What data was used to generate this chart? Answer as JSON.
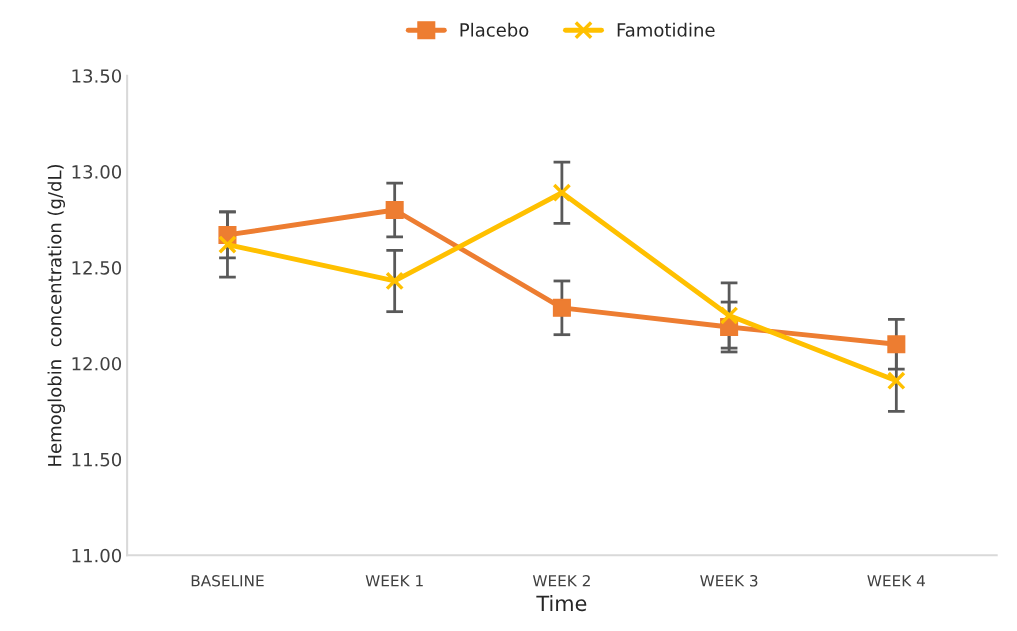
{
  "chart_data": {
    "type": "line",
    "xlabel": "Time",
    "ylabel": "Hemoglobin  concentration (g/dL)",
    "categories": [
      "BASELINE",
      "WEEK 1",
      "WEEK 2",
      "WEEK 3",
      "WEEK 4"
    ],
    "series": [
      {
        "name": "Placebo",
        "color": "#ed7d31",
        "marker": "square",
        "values": [
          12.67,
          12.8,
          12.29,
          12.19,
          12.1
        ],
        "errors": [
          0.12,
          0.14,
          0.14,
          0.13,
          0.13
        ]
      },
      {
        "name": "Famotidine",
        "color": "#ffc000",
        "marker": "cross",
        "values": [
          12.62,
          12.43,
          12.89,
          12.25,
          11.91
        ],
        "errors": [
          0.17,
          0.16,
          0.16,
          0.17,
          0.16
        ]
      }
    ],
    "ylim": [
      11.0,
      13.5
    ],
    "yticks": [
      {
        "value": 11.0,
        "label": "11.00"
      },
      {
        "value": 11.5,
        "label": "11.50"
      },
      {
        "value": 12.0,
        "label": "12.00"
      },
      {
        "value": 12.5,
        "label": "12.50"
      },
      {
        "value": 13.0,
        "label": "13.00"
      },
      {
        "value": 13.5,
        "label": "13.50"
      }
    ],
    "grid": false,
    "legend": "top"
  }
}
